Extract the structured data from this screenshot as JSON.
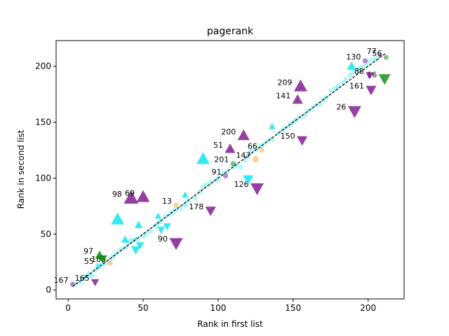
{
  "chart_data": {
    "type": "scatter",
    "title": "pagerank",
    "xlabel": "Rank in first list",
    "ylabel": "Rank in second list",
    "xlim": [
      -8,
      224
    ],
    "ylim": [
      -8,
      223
    ],
    "xticks": [
      0,
      50,
      100,
      150,
      200
    ],
    "yticks": [
      0,
      50,
      100,
      150,
      200
    ],
    "grid": false,
    "colors": {
      "cyan": "#00e5ee",
      "purple": "#7a0f8c",
      "green": "#0a8a0a",
      "orange": "#f5a623",
      "diagonal": "#000000"
    },
    "diagonal": {
      "x": [
        3,
        212
      ],
      "y": [
        3,
        212
      ],
      "style": "dashed"
    },
    "background_points": [
      [
        5,
        5
      ],
      [
        8,
        7
      ],
      [
        10,
        10
      ],
      [
        12,
        12
      ],
      [
        14,
        14
      ],
      [
        16,
        13
      ],
      [
        18,
        18
      ],
      [
        20,
        20
      ],
      [
        22,
        22
      ],
      [
        25,
        24
      ],
      [
        28,
        27
      ],
      [
        30,
        30
      ],
      [
        32,
        33
      ],
      [
        35,
        36
      ],
      [
        38,
        38
      ],
      [
        40,
        42
      ],
      [
        42,
        44
      ],
      [
        44,
        45
      ],
      [
        46,
        46
      ],
      [
        50,
        48
      ],
      [
        52,
        50
      ],
      [
        55,
        53
      ],
      [
        58,
        57
      ],
      [
        60,
        60
      ],
      [
        62,
        62
      ],
      [
        65,
        66
      ],
      [
        68,
        68
      ],
      [
        70,
        70
      ],
      [
        72,
        72
      ],
      [
        75,
        73
      ],
      [
        78,
        76
      ],
      [
        80,
        80
      ],
      [
        85,
        82
      ],
      [
        88,
        88
      ],
      [
        90,
        92
      ],
      [
        92,
        94
      ],
      [
        95,
        96
      ],
      [
        98,
        98
      ],
      [
        100,
        100
      ],
      [
        103,
        104
      ],
      [
        106,
        106
      ],
      [
        110,
        110
      ],
      [
        112,
        112
      ],
      [
        115,
        110
      ],
      [
        118,
        116
      ],
      [
        120,
        120
      ],
      [
        122,
        124
      ],
      [
        125,
        126
      ],
      [
        128,
        128
      ],
      [
        130,
        130
      ],
      [
        133,
        133
      ],
      [
        136,
        135
      ],
      [
        140,
        140
      ],
      [
        143,
        143
      ],
      [
        145,
        145
      ],
      [
        148,
        148
      ],
      [
        150,
        150
      ],
      [
        152,
        152
      ],
      [
        155,
        155
      ],
      [
        158,
        156
      ],
      [
        160,
        160
      ],
      [
        163,
        162
      ],
      [
        165,
        165
      ],
      [
        168,
        166
      ],
      [
        170,
        170
      ],
      [
        172,
        172
      ],
      [
        175,
        178
      ],
      [
        178,
        180
      ],
      [
        180,
        182
      ],
      [
        183,
        185
      ],
      [
        185,
        188
      ],
      [
        188,
        192
      ],
      [
        190,
        195
      ],
      [
        193,
        197
      ],
      [
        195,
        199
      ],
      [
        198,
        201
      ],
      [
        200,
        204
      ],
      [
        203,
        206
      ],
      [
        206,
        207
      ]
    ],
    "markers": [
      {
        "label": "167",
        "x": 3,
        "y": 5,
        "shape": "circle",
        "color": "purple",
        "size": 4
      },
      {
        "label": "165",
        "x": 18,
        "y": 7,
        "shape": "tri-down",
        "color": "purple",
        "size": 6
      },
      {
        "label": "55",
        "x": 20,
        "y": 22,
        "shape": "circle",
        "color": "cyan",
        "size": 4
      },
      {
        "label": "188",
        "x": 28,
        "y": 24,
        "shape": "circle",
        "color": "orange",
        "size": 4
      },
      {
        "label": "97",
        "x": 21,
        "y": 31,
        "shape": "tri-up",
        "color": "green",
        "size": 7
      },
      {
        "label": "",
        "x": 23,
        "y": 28,
        "shape": "tri-down",
        "color": "green",
        "size": 7
      },
      {
        "label": "",
        "x": 33,
        "y": 63,
        "shape": "tri-up",
        "color": "cyan",
        "size": 10
      },
      {
        "label": "",
        "x": 38,
        "y": 45,
        "shape": "tri-up",
        "color": "cyan",
        "size": 6
      },
      {
        "label": "",
        "x": 45,
        "y": 36,
        "shape": "tri-down",
        "color": "cyan",
        "size": 7
      },
      {
        "label": "",
        "x": 47,
        "y": 58,
        "shape": "tri-up",
        "color": "cyan",
        "size": 6
      },
      {
        "label": "",
        "x": 48,
        "y": 40,
        "shape": "tri-down",
        "color": "cyan",
        "size": 6
      },
      {
        "label": "",
        "x": 60,
        "y": 66,
        "shape": "tri-up",
        "color": "cyan",
        "size": 5
      },
      {
        "label": "",
        "x": 62,
        "y": 54,
        "shape": "tri-down",
        "color": "cyan",
        "size": 6
      },
      {
        "label": "",
        "x": 66,
        "y": 57,
        "shape": "tri-down",
        "color": "cyan",
        "size": 6
      },
      {
        "label": "98",
        "x": 42,
        "y": 82,
        "shape": "tri-up",
        "color": "purple",
        "size": 11
      },
      {
        "label": "69",
        "x": 50,
        "y": 83,
        "shape": "tri-up",
        "color": "purple",
        "size": 10
      },
      {
        "label": "90",
        "x": 72,
        "y": 42,
        "shape": "tri-down",
        "color": "purple",
        "size": 10
      },
      {
        "label": "13",
        "x": 72,
        "y": 76,
        "shape": "circle",
        "color": "orange",
        "size": 4
      },
      {
        "label": "",
        "x": 78,
        "y": 85,
        "shape": "tri-up",
        "color": "cyan",
        "size": 5
      },
      {
        "label": "178",
        "x": 95,
        "y": 71,
        "shape": "tri-down",
        "color": "purple",
        "size": 8
      },
      {
        "label": "",
        "x": 90,
        "y": 117,
        "shape": "tri-up",
        "color": "cyan",
        "size": 10
      },
      {
        "label": "91",
        "x": 105,
        "y": 102,
        "shape": "circle",
        "color": "purple",
        "size": 4
      },
      {
        "label": "201",
        "x": 110,
        "y": 113,
        "shape": "circle",
        "color": "green",
        "size": 4
      },
      {
        "label": "51",
        "x": 108,
        "y": 126,
        "shape": "tri-up",
        "color": "purple",
        "size": 8
      },
      {
        "label": "147",
        "x": 125,
        "y": 117,
        "shape": "circle",
        "color": "orange",
        "size": 5
      },
      {
        "label": "126",
        "x": 126,
        "y": 91,
        "shape": "tri-down",
        "color": "purple",
        "size": 10
      },
      {
        "label": "",
        "x": 120,
        "y": 99,
        "shape": "tri-down",
        "color": "cyan",
        "size": 8
      },
      {
        "label": "66",
        "x": 129,
        "y": 125,
        "shape": "circle",
        "color": "orange",
        "size": 4
      },
      {
        "label": "200",
        "x": 117,
        "y": 138,
        "shape": "tri-up",
        "color": "purple",
        "size": 9
      },
      {
        "label": "",
        "x": 136,
        "y": 146,
        "shape": "tri-up",
        "color": "cyan",
        "size": 5
      },
      {
        "label": "150",
        "x": 156,
        "y": 134,
        "shape": "tri-down",
        "color": "purple",
        "size": 8
      },
      {
        "label": "141",
        "x": 153,
        "y": 170,
        "shape": "tri-up",
        "color": "purple",
        "size": 8
      },
      {
        "label": "209",
        "x": 155,
        "y": 182,
        "shape": "tri-up",
        "color": "purple",
        "size": 10
      },
      {
        "label": "26",
        "x": 191,
        "y": 160,
        "shape": "tri-down",
        "color": "purple",
        "size": 10
      },
      {
        "label": "161",
        "x": 202,
        "y": 179,
        "shape": "tri-down",
        "color": "purple",
        "size": 8
      },
      {
        "label": "16",
        "x": 211,
        "y": 189,
        "shape": "tri-down",
        "color": "green",
        "size": 9
      },
      {
        "label": "88",
        "x": 201,
        "y": 192,
        "shape": "tri-down",
        "color": "purple",
        "size": 6
      },
      {
        "label": "",
        "x": 189,
        "y": 200,
        "shape": "tri-up",
        "color": "cyan",
        "size": 7
      },
      {
        "label": "130",
        "x": 198,
        "y": 205,
        "shape": "circle",
        "color": "purple",
        "size": 4
      },
      {
        "label": "77",
        "x": 208,
        "y": 210,
        "shape": "circle",
        "color": "purple",
        "size": 3
      },
      {
        "label": "56",
        "x": 212,
        "y": 208,
        "shape": "circle",
        "color": "green",
        "size": 4
      }
    ]
  }
}
